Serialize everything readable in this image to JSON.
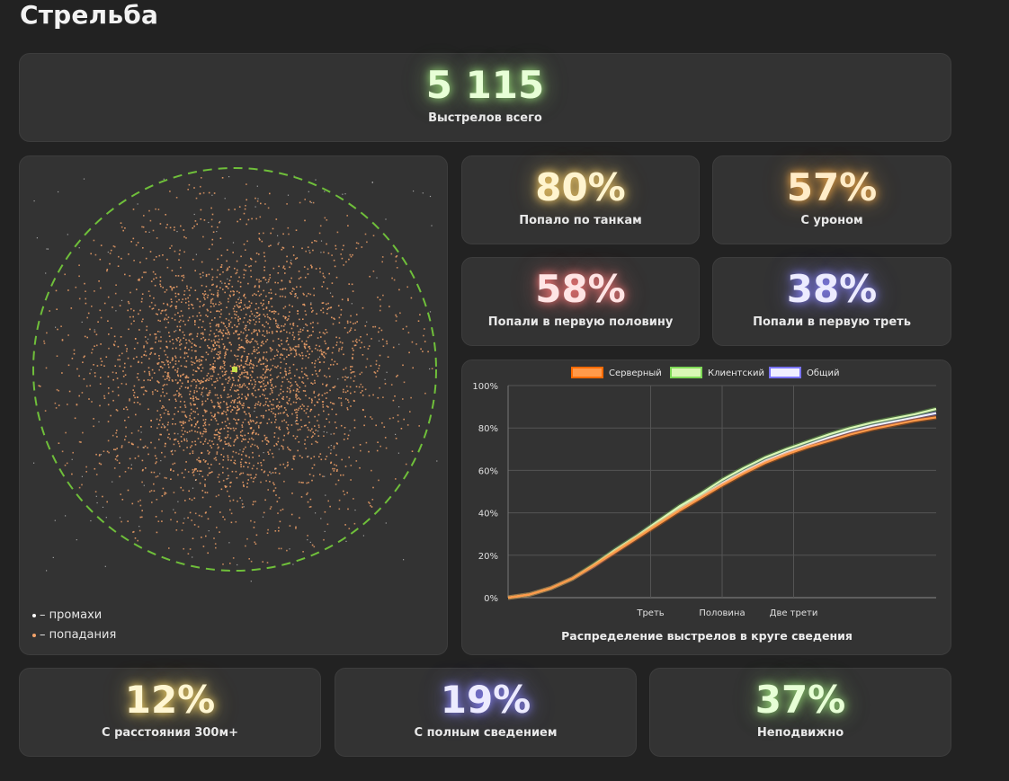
{
  "title": "Стрельба",
  "total": {
    "value": "5 115",
    "label": "Выстрелов всего",
    "color": "#e7ffd6",
    "glow": "#9be07a"
  },
  "stats_top": [
    {
      "value": "80%",
      "label": "Попало по танкам",
      "color": "#fff4cf",
      "glow": "#ffd36a"
    },
    {
      "value": "57%",
      "label": "С уроном",
      "color": "#ffecc8",
      "glow": "#ffb24a"
    },
    {
      "value": "58%",
      "label": "Попали в первую половину",
      "color": "#ffe4e4",
      "glow": "#ff7a7a"
    },
    {
      "value": "38%",
      "label": "Попали в первую треть",
      "color": "#ecebff",
      "glow": "#8a86ff"
    }
  ],
  "stats_bottom": [
    {
      "value": "12%",
      "label": "С расстояния 300м+",
      "color": "#fff6d2",
      "glow": "#ffdd6a"
    },
    {
      "value": "19%",
      "label": "С полным сведением",
      "color": "#ecebff",
      "glow": "#8a86ff"
    },
    {
      "value": "37%",
      "label": "Неподвижно",
      "color": "#e7ffd6",
      "glow": "#9be07a"
    }
  ],
  "scatter": {
    "legend_miss": "– промахи",
    "legend_hit": "– попадания",
    "miss_color": "#ffffff",
    "hit_color": "#f4a36a",
    "circle_color": "#6fbf3a",
    "center_color": "#c8e04a"
  },
  "chart_data": {
    "type": "line",
    "title": "Распределение выстрелов в круге сведения",
    "x": [
      0,
      0.05,
      0.1,
      0.15,
      0.2,
      0.25,
      0.3,
      0.35,
      0.4,
      0.45,
      0.5,
      0.55,
      0.6,
      0.65,
      0.7,
      0.75,
      0.8,
      0.85,
      0.9,
      0.95,
      1.0
    ],
    "xticks": [
      {
        "pos": 0.333,
        "label": "Треть"
      },
      {
        "pos": 0.5,
        "label": "Половина"
      },
      {
        "pos": 0.667,
        "label": "Две трети"
      }
    ],
    "yticks": [
      "0%",
      "20%",
      "40%",
      "60%",
      "80%",
      "100%"
    ],
    "ylim": [
      0,
      100
    ],
    "series": [
      {
        "name": "Серверный",
        "color": "#ff9a4a",
        "glow": "#ff6a00",
        "values": [
          0,
          1.5,
          4.5,
          9,
          15,
          21.5,
          28,
          34.5,
          41,
          47,
          53,
          58.5,
          63.5,
          67.5,
          71,
          74,
          77,
          79.5,
          81.5,
          83.5,
          85
        ]
      },
      {
        "name": "Клиентский",
        "color": "#d9f7b5",
        "glow": "#7ed957",
        "values": [
          0,
          1.5,
          4.5,
          9,
          15.5,
          22.5,
          29,
          36,
          43,
          49,
          55.5,
          61,
          66,
          70,
          73.5,
          77,
          80,
          82.5,
          84.5,
          86.5,
          89
        ]
      },
      {
        "name": "Общий",
        "color": "#f0efff",
        "glow": "#7a74ff",
        "values": [
          0,
          1.5,
          4.5,
          9,
          15,
          22,
          28.5,
          35.5,
          42,
          48,
          54,
          59.5,
          64.5,
          68.5,
          72,
          75.5,
          78.5,
          81,
          83,
          85,
          87
        ]
      }
    ]
  }
}
